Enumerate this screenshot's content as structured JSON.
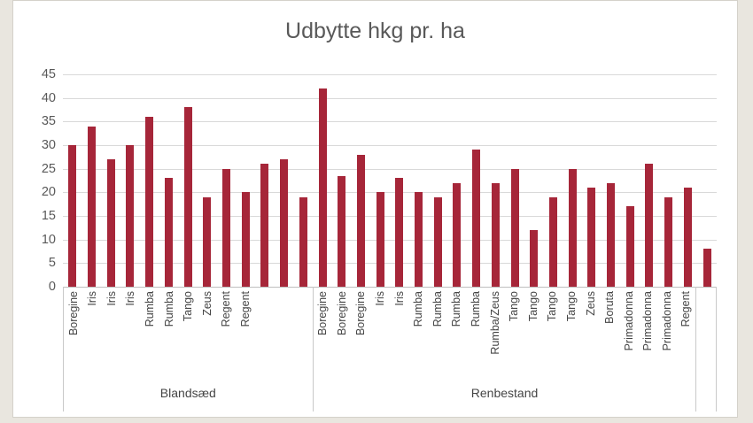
{
  "window": {
    "desktop_background_color": "#e9e6df",
    "surface_color": "#ffffff"
  },
  "chart_data": {
    "type": "bar",
    "title": "Udbytte hkg pr. ha",
    "xlabel": "",
    "ylabel": "",
    "ylim": [
      0,
      45
    ],
    "yticks": [
      45,
      40,
      35,
      30,
      25,
      20,
      15,
      10,
      5,
      0
    ],
    "grid": true,
    "legend": false,
    "bar_color": "#a62639",
    "text_color": "#595959",
    "gridline_color": "#d9d9d9",
    "axis_line_color": "#bfbfbf",
    "groups": [
      {
        "label": "Blandsæd",
        "bars": [
          {
            "variety": "Boregine",
            "value": 30
          },
          {
            "variety": "Iris",
            "value": 34
          },
          {
            "variety": "Iris",
            "value": 27
          },
          {
            "variety": "Iris",
            "value": 30
          },
          {
            "variety": "Rumba",
            "value": 36
          },
          {
            "variety": "Rumba",
            "value": 23
          },
          {
            "variety": "Tango",
            "value": 38
          },
          {
            "variety": "Zeus",
            "value": 19
          },
          {
            "variety": "Regent",
            "value": 25
          },
          {
            "variety": "Regent",
            "value": 20
          },
          {
            "variety": "",
            "value": 26
          },
          {
            "variety": "",
            "value": 27
          },
          {
            "variety": "",
            "value": 19
          }
        ]
      },
      {
        "label": "Renbestand",
        "bars": [
          {
            "variety": "Boregine",
            "value": 42
          },
          {
            "variety": "Boregine",
            "value": 23.5
          },
          {
            "variety": "Boregine",
            "value": 28
          },
          {
            "variety": "Iris",
            "value": 20
          },
          {
            "variety": "Iris",
            "value": 23
          },
          {
            "variety": "Rumba",
            "value": 20
          },
          {
            "variety": "Rumba",
            "value": 19
          },
          {
            "variety": "Rumba",
            "value": 22
          },
          {
            "variety": "Rumba",
            "value": 29
          },
          {
            "variety": "Rumba/Zeus",
            "value": 22
          },
          {
            "variety": "Tango",
            "value": 25
          },
          {
            "variety": "Tango",
            "value": 12
          },
          {
            "variety": "Tango",
            "value": 19
          },
          {
            "variety": "Tango",
            "value": 25
          },
          {
            "variety": "Zeus",
            "value": 21
          },
          {
            "variety": "Boruta",
            "value": 22
          },
          {
            "variety": "Primadonna",
            "value": 17
          },
          {
            "variety": "Primadonna",
            "value": 26
          },
          {
            "variety": "Primadonna",
            "value": 19
          },
          {
            "variety": "Regent",
            "value": 21
          }
        ]
      },
      {
        "label": "",
        "bars": [
          {
            "variety": "",
            "value": 8
          }
        ]
      }
    ]
  }
}
